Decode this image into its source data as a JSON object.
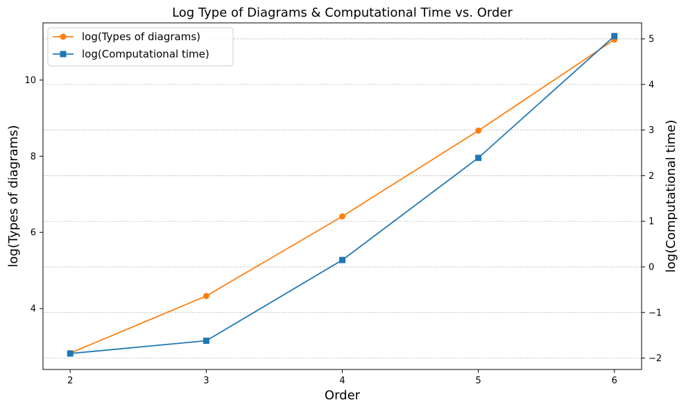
{
  "chart_data": {
    "type": "line",
    "title": "Log Type of Diagrams & Computational Time vs. Order",
    "xlabel": "Order",
    "ylabel_left": "log(Types of diagrams)",
    "ylabel_right": "log(Computational time)",
    "x": [
      2,
      3,
      4,
      5,
      6
    ],
    "x_ticks": [
      "2",
      "3",
      "4",
      "5",
      "6"
    ],
    "xlim": [
      1.8,
      6.2
    ],
    "ylim_left": [
      2.4,
      11.5
    ],
    "ylim_right": [
      -2.25,
      5.35
    ],
    "y_ticks_left": [
      "4",
      "6",
      "8",
      "10"
    ],
    "y_ticks_right": [
      "−2",
      "−1",
      "0",
      "1",
      "2",
      "3",
      "4",
      "5"
    ],
    "grid": "horizontal dashed (right axis)",
    "legend_position": "top-left",
    "series": [
      {
        "name": "log(Types of diagrams)",
        "axis": "left",
        "color": "#ff7f0e",
        "marker": "circle",
        "values": [
          2.83,
          4.33,
          6.42,
          8.67,
          11.06
        ]
      },
      {
        "name": "log(Computational time)",
        "axis": "right",
        "color": "#1f77b4",
        "marker": "square",
        "values": [
          -1.9,
          -1.62,
          0.15,
          2.39,
          5.06
        ]
      }
    ]
  }
}
